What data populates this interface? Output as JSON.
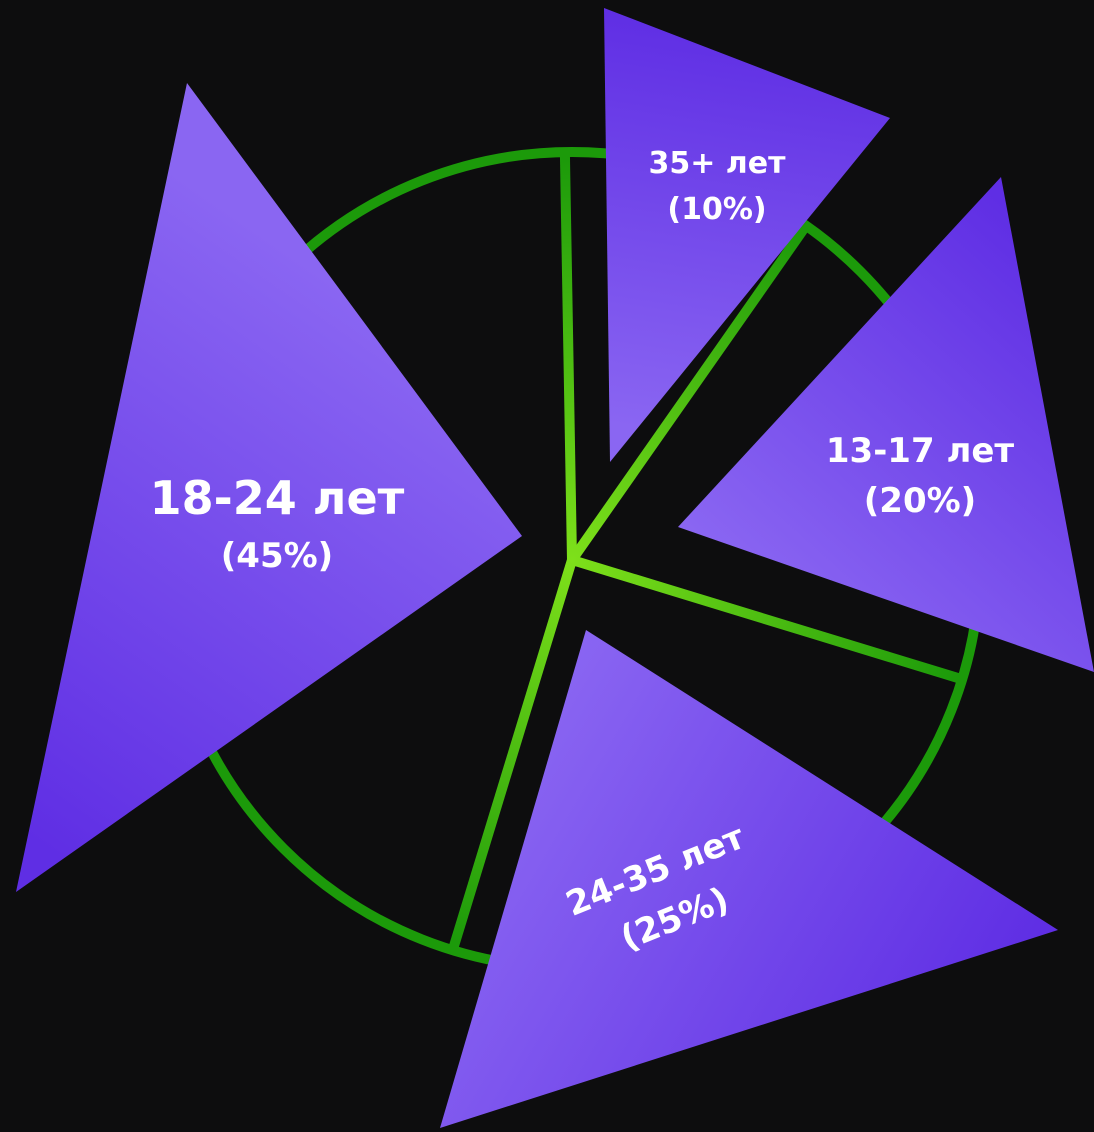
{
  "chart_data": {
    "type": "pie",
    "categories": [
      "35+ лет",
      "13-17 лет",
      "24-35 лет",
      "18-24 лет"
    ],
    "values": [
      10,
      20,
      25,
      45
    ],
    "labels": [
      {
        "category": "35+ лет",
        "percent": "(10%)"
      },
      {
        "category": "13-17 лет",
        "percent": "(20%)"
      },
      {
        "category": "24-35 лет",
        "percent": "(25%)"
      },
      {
        "category": "18-24 лет",
        "percent": "(45%)"
      }
    ],
    "colors": {
      "background": "#0d0d0e",
      "ring": "#1c9a0a",
      "spoke_center": "#7ee01a",
      "triangle_light": "#8a66f2",
      "triangle_dark": "#5f2ee4",
      "text": "#ffffff"
    }
  }
}
